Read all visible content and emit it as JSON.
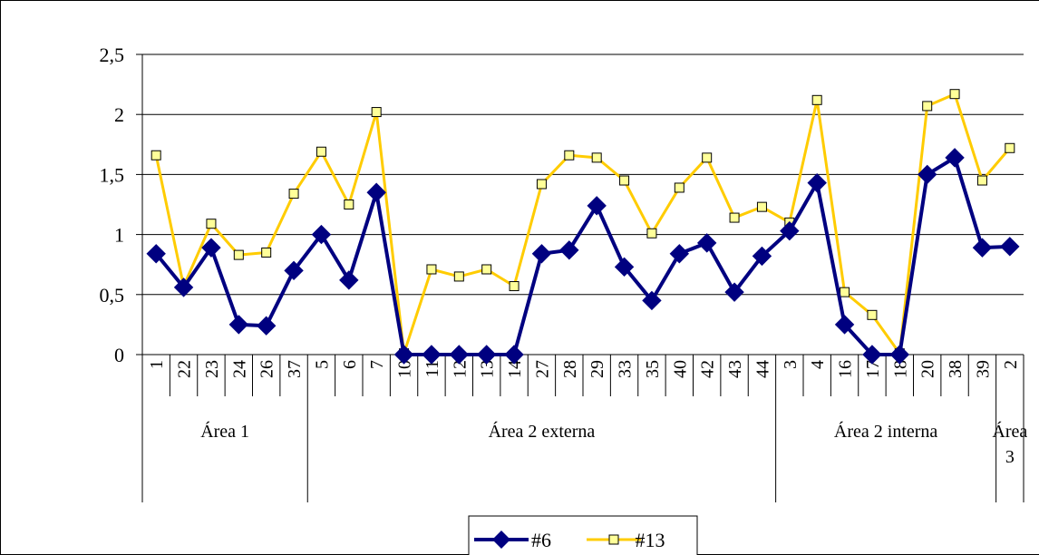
{
  "chart_data": {
    "type": "line",
    "title": "",
    "xlabel": "",
    "ylabel": "",
    "ylim": [
      0,
      2.5
    ],
    "yticks": [
      "0",
      "0,5",
      "1",
      "1,5",
      "2",
      "2,5"
    ],
    "ytick_values": [
      0,
      0.5,
      1,
      1.5,
      2,
      2.5
    ],
    "grid": true,
    "legend_position": "bottom",
    "categories": [
      "1",
      "22",
      "23",
      "24",
      "26",
      "37",
      "5",
      "6",
      "7",
      "10",
      "11",
      "12",
      "13",
      "14",
      "27",
      "28",
      "29",
      "33",
      "35",
      "40",
      "42",
      "43",
      "44",
      "3",
      "4",
      "16",
      "17",
      "18",
      "20",
      "38",
      "39",
      "2"
    ],
    "groups": [
      {
        "label": "Área 1",
        "count": 6
      },
      {
        "label": "Área 2 externa",
        "count": 17
      },
      {
        "label": "Área 2 interna",
        "count": 8
      },
      {
        "label": "Área 3",
        "label_lines": [
          "Área",
          "3"
        ],
        "count": 1
      }
    ],
    "series": [
      {
        "name": "#6",
        "color": "#000080",
        "marker": "diamond",
        "values": [
          0.84,
          0.56,
          0.89,
          0.25,
          0.24,
          0.7,
          1.0,
          0.62,
          1.35,
          0.0,
          0.0,
          0.0,
          0.0,
          0.0,
          0.84,
          0.87,
          1.24,
          0.73,
          0.45,
          0.84,
          0.93,
          0.52,
          0.82,
          1.03,
          1.43,
          0.25,
          0.0,
          0.0,
          1.5,
          1.64,
          0.89,
          0.9
        ]
      },
      {
        "name": "#13",
        "color": "#FFCC00",
        "marker": "square",
        "values": [
          1.66,
          0.57,
          1.09,
          0.83,
          0.85,
          1.34,
          1.69,
          1.25,
          2.02,
          0.01,
          0.71,
          0.65,
          0.71,
          0.57,
          1.42,
          1.66,
          1.64,
          1.45,
          1.01,
          1.39,
          1.64,
          1.14,
          1.23,
          1.1,
          2.12,
          0.52,
          0.33,
          0.01,
          2.07,
          2.17,
          1.45,
          1.72
        ]
      }
    ]
  }
}
